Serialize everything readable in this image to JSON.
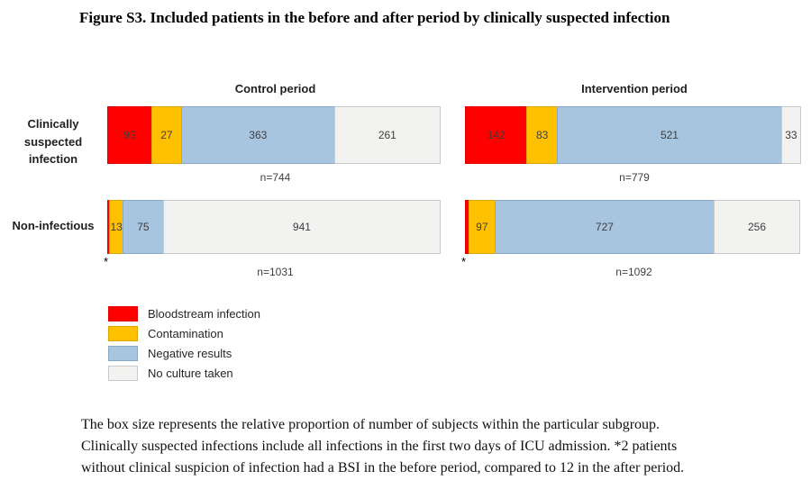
{
  "title": "Figure S3. Included patients in the before and after period by clinically suspected infection",
  "chart_data": {
    "type": "bar",
    "orientation": "horizontal-stacked",
    "groups": [
      "Control period",
      "Intervention period"
    ],
    "rows": [
      "Clinically suspected infection",
      "Non-infectious"
    ],
    "legend_position": "bottom-left",
    "series": [
      {
        "name": "Bloodstream infection",
        "color": "#fe0000",
        "border": "#e20000"
      },
      {
        "name": "Contamination",
        "color": "#ffc000",
        "border": "#dca600"
      },
      {
        "name": "Negative results",
        "color": "#a8c5e0",
        "border": "#8aa9c4"
      },
      {
        "name": "No culture taken",
        "color": "#f2f2f0",
        "border": "#c9c9c9"
      }
    ],
    "bars": [
      {
        "row": "Clinically suspected infection",
        "group": "Control period",
        "values": [
          93,
          27,
          363,
          261
        ],
        "labels": [
          "93",
          "27",
          "363",
          "261"
        ],
        "display_pct": [
          13.4,
          9.1,
          45.8,
          31.7
        ],
        "total_label": "n=744",
        "footnote": ""
      },
      {
        "row": "Clinically suspected infection",
        "group": "Intervention period",
        "values": [
          142,
          83,
          521,
          33
        ],
        "labels": [
          "142",
          "83",
          "521",
          "33"
        ],
        "display_pct": [
          18.4,
          9.3,
          66.4,
          5.9
        ],
        "total_label": "n=779",
        "footnote": ""
      },
      {
        "row": "Non-infectious",
        "group": "Control period",
        "values": [
          2,
          13,
          75,
          941
        ],
        "labels": [
          "",
          "13",
          "75",
          "941"
        ],
        "display_pct": [
          0.9,
          4.2,
          12.3,
          82.6
        ],
        "total_label": "n=1031",
        "footnote": "*"
      },
      {
        "row": "Non-infectious",
        "group": "Intervention period",
        "values": [
          12,
          97,
          727,
          256
        ],
        "labels": [
          "",
          "97",
          "727",
          "256"
        ],
        "display_pct": [
          1.3,
          8.0,
          65.1,
          25.6
        ],
        "total_label": "n=1092",
        "footnote": "*"
      }
    ]
  },
  "caption": {
    "lines": [
      "The box size represents the relative proportion of number of subjects within the particular subgroup.",
      "Clinically suspected infections include all infections in the first two days of ICU admission. *2 patients",
      "without clinical suspicion of infection had a BSI in the before period, compared to 12 in the after period."
    ]
  }
}
